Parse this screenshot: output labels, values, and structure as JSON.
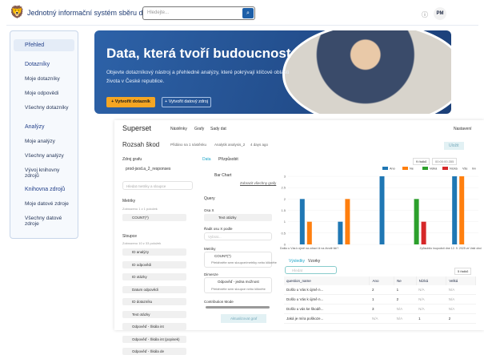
{
  "header": {
    "title": "Jednotný informační systém sběru dat",
    "search_placeholder": "Hledejte...",
    "avatar": "PM",
    "help_icon": "question-circle-icon"
  },
  "sidebar": {
    "items": [
      {
        "label": "Přehled",
        "type": "head",
        "selected": true
      },
      {
        "label": "Dotazníky",
        "type": "head"
      },
      {
        "label": "Moje dotazníky"
      },
      {
        "label": "Moje odpovědi"
      },
      {
        "label": "Všechny dotazníky"
      },
      {
        "label": "Analýzy",
        "type": "head"
      },
      {
        "label": "Moje analýzy"
      },
      {
        "label": "Všechny analýzy"
      },
      {
        "label": "Vývoj knihovny zdrojů"
      },
      {
        "label": "Knihovna zdrojů",
        "type": "head"
      },
      {
        "label": "Moje datové zdroje"
      },
      {
        "label": "Všechny datové zdroje"
      }
    ]
  },
  "banner": {
    "title": "Data, která tvoří budoucnost",
    "subtitle": "Objevte dotazníkový nástroj a přehledné analýzy, které pokrývají klíčové oblasti života v České republice.",
    "primary_button": "+ Vytvořit dotazník",
    "secondary_button": "+ Vytvořit datový zdroj",
    "accent": "#f5a623"
  },
  "superset": {
    "brand": "Superset",
    "nav": [
      "Nástěnky",
      "Grafy",
      "Sady dat"
    ],
    "settings": "Nastavení",
    "chart_title": "Rozsah škod",
    "meta": [
      "Přidáno na 1 nástěnku",
      "Analytik analysis_2",
      "4 days ago"
    ],
    "save": "Uložit",
    "datasource_label": "Zdroj grafu",
    "datasource": "prod-jsod.a_2_responses",
    "search_placeholder": "Hledat metriky a sloupce",
    "metrics_label": "Metriky",
    "metrics_count": "Zobrazeno 1 z 1 položek",
    "metric": "COUNT(*)",
    "columns_label": "Sloupce",
    "columns_count": "Zobrazeno 10 z 33 položek",
    "columns": [
      "ID analýzy",
      "ID odpovědi",
      "ID otázky",
      "Datum odpovědi",
      "ID dotazníku",
      "Text otázky",
      "Odpověď - Škála int",
      "Odpověď - Škála int (popisek)",
      "Odpověď - Škála de"
    ],
    "tabs": [
      "Data",
      "Přizpůsobit"
    ],
    "chart_type": "Bar Chart",
    "view_all": "Zobrazit všechny grafy",
    "query_label": "Query",
    "x_axis_label": "Osa X",
    "x_axis_value": "Text otázky",
    "sort_label": "Řadit osu X podle",
    "sort_placeholder": "Vybrat...",
    "metrics2_label": "Metriky",
    "metrics2_value": "COUNT(*)",
    "drop_hint_metric": "Přetáhněte sem sloupce/metriky nebo klikněte",
    "dimensions_label": "Dimenze",
    "dimension_value": "Odpověď - jedna možnost",
    "drop_hint_dim": "Přetáhněte sem sloupce nebo klikněte",
    "contribution": "Contribution Mode",
    "update_button": "Aktualizovat graf",
    "row_count": "9 řádků",
    "timer": "00:00:00.355",
    "result_tabs": [
      "Výsledky",
      "Vzorky"
    ],
    "result_search_placeholder": "Hledat",
    "result_rows": "5 řádků"
  },
  "chart_data": {
    "type": "bar",
    "ylim": [
      0,
      3
    ],
    "yticks": [
      "0",
      "0.5",
      "1",
      "1.5",
      "2",
      "2.5",
      "3"
    ],
    "legend": [
      "Ano",
      "Ne",
      "Velká",
      "Nízká",
      "Vše",
      "Inv"
    ],
    "legend_position": "top-right",
    "colors": {
      "Ano": "#1f77b4",
      "Ne": "#ff7f0e",
      "Velká": "#2ca02c",
      "Nízká": "#d62728"
    },
    "categories": [
      "Došlo u Vás k újmě na zdraví či na životě lidí?",
      "",
      "",
      "",
      "Způsobilo inupodstí dne 12. 9. 2025 ve Vaší obci"
    ],
    "series": [
      {
        "name": "Ano",
        "values": [
          2,
          1,
          3,
          null,
          3
        ]
      },
      {
        "name": "Ne",
        "values": [
          1,
          2,
          null,
          null,
          3
        ]
      },
      {
        "name": "Velká",
        "values": [
          null,
          null,
          null,
          2,
          null
        ]
      },
      {
        "name": "Nízká",
        "values": [
          null,
          null,
          null,
          1,
          null
        ]
      }
    ]
  },
  "table": {
    "columns": [
      "question_name",
      "Ano",
      "Ne",
      "Nízká",
      "Velká"
    ],
    "rows": [
      [
        "Došlo u Vás k újmě n...",
        "2",
        "1",
        "N/A",
        "N/A"
      ],
      [
        "Došlo u Vás k újmě n...",
        "1",
        "2",
        "N/A",
        "N/A"
      ],
      [
        "Došlo u vás ke škodě...",
        "3",
        "N/A",
        "N/A",
        "N/A"
      ],
      [
        "Jaká je míra poškoze...",
        "N/A",
        "N/A",
        "1",
        "2"
      ]
    ]
  }
}
